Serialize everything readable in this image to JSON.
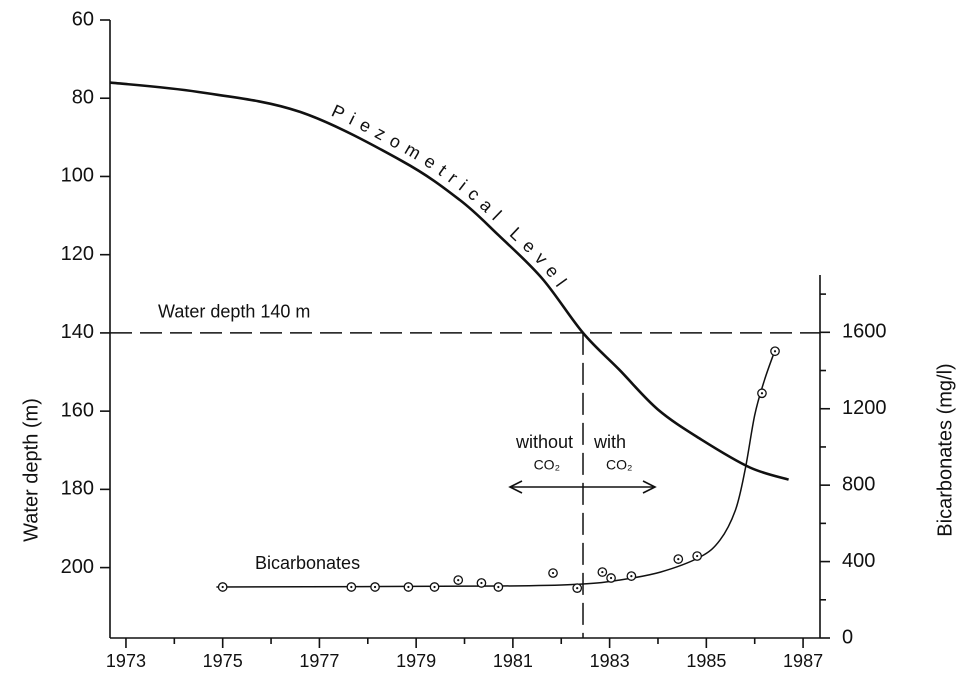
{
  "chart_data": {
    "type": "line",
    "y_label": "Water depth (m)",
    "y2_label": "Bicarbonates (mg/l)",
    "xlim": [
      1972.67,
      1987.35
    ],
    "xticks": [
      1973,
      1975,
      1977,
      1979,
      1981,
      1983,
      1985,
      1987
    ],
    "xminorticks": [
      1974,
      1976,
      1978,
      1980,
      1982,
      1984,
      1986
    ],
    "ylim": [
      60,
      218
    ],
    "y_inverted": true,
    "yticks": [
      60,
      80,
      100,
      120,
      140,
      160,
      180,
      200
    ],
    "y2lim": [
      0,
      1900
    ],
    "y2ticks": [
      0,
      400,
      800,
      1200,
      1600
    ],
    "y2minorticks": [
      200,
      600,
      1000,
      1400,
      1800
    ],
    "series": [
      {
        "name": "Piezometrical Level",
        "color": "#111111",
        "x": [
          1972.67,
          1974.5,
          1976.6,
          1978.7,
          1979.9,
          1980.7,
          1981.6,
          1982.45,
          1983.2,
          1984.0,
          1984.9,
          1985.9,
          1986.7
        ],
        "values": [
          76,
          78.4,
          83.5,
          96,
          106,
          115,
          126,
          140,
          149.4,
          159.6,
          167.3,
          174.4,
          177.5
        ]
      },
      {
        "name": "Bicarbonates",
        "color": "#111111",
        "axis": "y2",
        "x": [
          1975.0,
          1977.66,
          1978.15,
          1978.84,
          1979.38,
          1979.87,
          1980.35,
          1980.7,
          1981.83,
          1982.33,
          1982.85,
          1983.03,
          1983.45,
          1984.42,
          1984.81,
          1986.15,
          1986.42
        ],
        "values": [
          267,
          267,
          267,
          267,
          267,
          303,
          288,
          267,
          340,
          261,
          345,
          314,
          324,
          413,
          429,
          1281,
          1501
        ],
        "curve_x": [
          1974.87,
          1980.74,
          1982.4,
          1983.2,
          1984.05,
          1984.87,
          1985.28,
          1985.6,
          1985.8,
          1986.0,
          1986.2,
          1986.42
        ],
        "curve_values": [
          267,
          272,
          282,
          303,
          345,
          424,
          512,
          669,
          878,
          1166,
          1349,
          1506
        ]
      }
    ],
    "reference_line": {
      "label": "Water depth 140 m",
      "value": 140
    },
    "vertical_line": {
      "x": 1982.45
    },
    "arrow_labels": {
      "left": [
        "without",
        "CO₂"
      ],
      "right": [
        "with",
        "CO₂"
      ]
    }
  }
}
